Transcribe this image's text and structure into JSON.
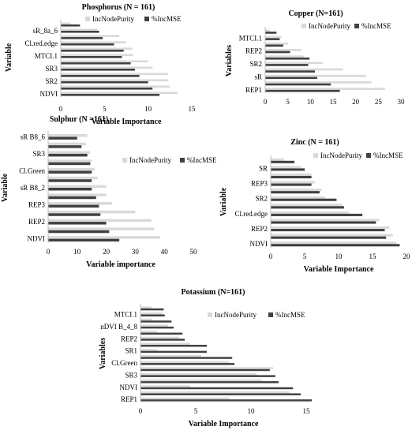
{
  "colors": {
    "inc_node_purity": "#d9d9d9",
    "inc_mse": "#404040"
  },
  "chart_data": [
    {
      "type": "bar",
      "orientation": "horizontal",
      "title": "Phosphorus (N = 161)",
      "xlabel": "Variable Importance",
      "ylabel": "Variable",
      "categories": [
        "NDVI",
        "",
        "SR2",
        "",
        "SR3",
        "",
        "MTCI.1",
        "",
        "Cl.red.edge",
        "",
        "sR_8a_6",
        ""
      ],
      "series": [
        {
          "name": "IncNodePurity",
          "values": [
            13.4,
            12.5,
            12.3,
            12.3,
            10.5,
            10.0,
            8.3,
            8.2,
            7.5,
            6.7,
            4.2,
            1.1
          ]
        },
        {
          "name": "%IncMSE",
          "values": [
            11.3,
            10.5,
            10.0,
            9.0,
            8.5,
            8.0,
            7.0,
            7.2,
            6.1,
            4.8,
            4.4,
            2.2
          ]
        }
      ],
      "xlim": [
        0,
        15
      ],
      "xticks": [
        0,
        5,
        10,
        15
      ],
      "legend_position": "top"
    },
    {
      "type": "bar",
      "orientation": "horizontal",
      "title": "Copper (N=161)",
      "xlabel": "",
      "ylabel": "Variables",
      "categories": [
        "REP1",
        "",
        "sR",
        "",
        "SR2",
        "",
        "REP2",
        "",
        "MTCI.1",
        ""
      ],
      "series": [
        {
          "name": "IncNodePurity",
          "values": [
            26.5,
            23.5,
            22.3,
            17.2,
            12.8,
            8.5,
            8.0,
            5.1,
            3.5,
            1.0
          ]
        },
        {
          "name": "%IncMSE",
          "values": [
            16.5,
            14.5,
            11.5,
            11.0,
            9.5,
            9.8,
            5.5,
            4.0,
            3.2,
            2.5
          ]
        }
      ],
      "xlim": [
        0,
        30
      ],
      "xticks": [
        0,
        5,
        10,
        15,
        20,
        25,
        30
      ],
      "legend_position": "top"
    },
    {
      "type": "bar",
      "orientation": "horizontal",
      "title": "Sulphur (N =161)",
      "xlabel": "Variable importance",
      "ylabel": "Variable",
      "categories": [
        "NDVI",
        "",
        "REP2",
        "",
        "REP3",
        "",
        "sR B8_2",
        "",
        "Cl.Green",
        "",
        "SR3",
        "",
        "sR B8_6"
      ],
      "series": [
        {
          "name": "IncNodePurity",
          "values": [
            38.5,
            36.5,
            35.5,
            30.0,
            22.0,
            20.0,
            20.0,
            17.0,
            16.0,
            15.0,
            14.5,
            13.0,
            13.5
          ]
        },
        {
          "name": "%IncMSE",
          "values": [
            24.5,
            21.0,
            20.0,
            18.0,
            17.5,
            16.5,
            15.0,
            15.0,
            15.0,
            14.5,
            13.5,
            11.5,
            10.0
          ]
        }
      ],
      "xlim": [
        0,
        50
      ],
      "xticks": [
        0,
        10,
        20,
        30,
        40,
        50
      ],
      "legend_position": "right"
    },
    {
      "type": "bar",
      "orientation": "horizontal",
      "title": "Zinc (N = 161)",
      "xlabel": "Variable Importance",
      "ylabel": "Variable",
      "categories": [
        "NDVI",
        "",
        "REP2",
        "",
        "Cl.red.edge",
        "",
        "SR2",
        "",
        "REP3",
        "",
        "SR",
        ""
      ],
      "series": [
        {
          "name": "IncNodePurity",
          "values": [
            18.5,
            18.0,
            17.5,
            16.0,
            11.5,
            10.5,
            8.0,
            7.5,
            6.5,
            6.0,
            4.5,
            2.0
          ]
        },
        {
          "name": "%IncMSE",
          "values": [
            19.0,
            17.0,
            16.8,
            15.5,
            13.5,
            10.8,
            9.7,
            7.2,
            6.0,
            6.0,
            5.0,
            3.5
          ]
        }
      ],
      "xlim": [
        0,
        20
      ],
      "xticks": [
        0,
        5,
        10,
        15,
        20
      ],
      "legend_position": "top"
    },
    {
      "type": "bar",
      "orientation": "horizontal",
      "title": "Potassium (N=161)",
      "xlabel": "Variable Importance",
      "ylabel": "Variables",
      "categories": [
        "REP1",
        "",
        "NDVI",
        "",
        "SR3",
        "",
        "Cl.Green",
        "",
        "SR1",
        "",
        "REP2",
        "",
        "nDVI B_4_8",
        "",
        "MTCI.1",
        ""
      ],
      "series": [
        {
          "name": "IncNodePurity",
          "values": [
            8.0,
            13.5,
            4.5,
            11.0,
            10.5,
            12.0,
            8.0,
            5.5,
            1.5,
            4.5,
            3.5,
            1.5,
            2.5,
            1.0,
            2.0,
            1.0
          ]
        },
        {
          "name": "%IncMSE",
          "values": [
            15.5,
            14.5,
            13.8,
            12.5,
            12.2,
            11.7,
            8.5,
            8.3,
            6.0,
            6.0,
            4.0,
            3.8,
            3.0,
            2.8,
            2.2,
            2.1
          ]
        }
      ],
      "xlim": [
        0,
        15
      ],
      "xticks": [
        0,
        5,
        10,
        15
      ],
      "legend_position": "top"
    }
  ]
}
